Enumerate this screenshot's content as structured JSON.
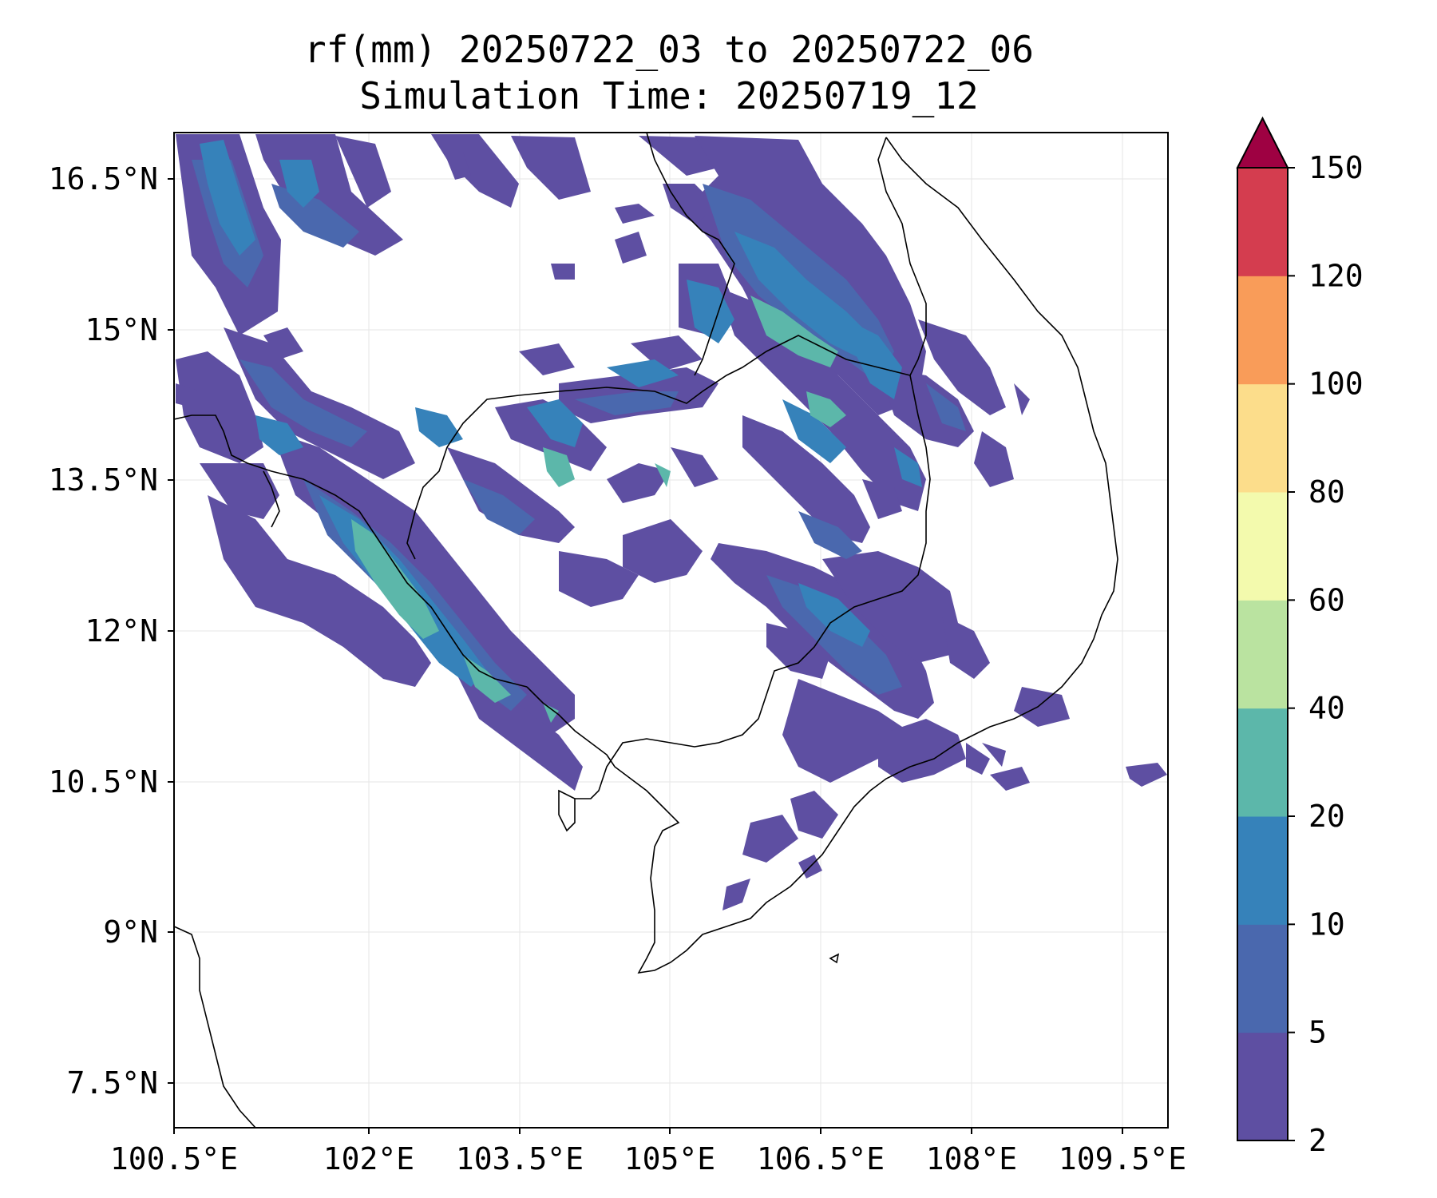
{
  "title": {
    "line1": "rf(mm) 20250722_03 to 20250722_06",
    "line2": "Simulation Time: 20250719_12"
  },
  "map": {
    "lon_ticks": [
      "100.5°E",
      "102°E",
      "103.5°E",
      "105°E",
      "106.5°E",
      "108°E",
      "109.5°E"
    ],
    "lat_ticks": [
      "16.5°N",
      "15°N",
      "13.5°N",
      "12°N",
      "10.5°N",
      "9°N",
      "7.5°N"
    ],
    "gridlines": true,
    "land_outline_color": "#000000"
  },
  "colorbar": {
    "levels": [
      "2",
      "5",
      "10",
      "20",
      "40",
      "60",
      "80",
      "100",
      "120",
      "150"
    ],
    "colors": [
      "#5e4fa2",
      "#4a68ae",
      "#3682ba",
      "#5cb7aa",
      "#bae3a0",
      "#f3faad",
      "#fcdd8b",
      "#f99c59",
      "#d43d4f",
      "#9e0142"
    ],
    "extend": "max"
  }
}
